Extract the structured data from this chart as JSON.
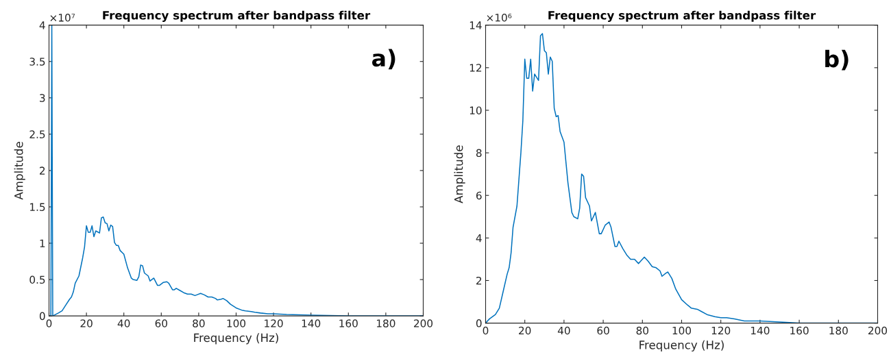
{
  "chart_data": [
    {
      "type": "line",
      "title": "Frequency spectrum after bandpass filter",
      "xlabel": "Frequency (Hz)",
      "ylabel": "Amplitude",
      "annotations": [
        "×10⁷",
        "a)"
      ],
      "grid": false,
      "legend": false,
      "marker": "none",
      "line_style": "solid",
      "xlim": [
        0,
        200
      ],
      "xticks": [
        0,
        20,
        40,
        60,
        80,
        100,
        120,
        140,
        160,
        180,
        200
      ],
      "ylim": [
        0,
        4
      ],
      "yticks": [
        0,
        0.5,
        1,
        1.5,
        2,
        2.5,
        3,
        3.5,
        4
      ],
      "series": [
        {
          "color": "#0072bd",
          "x": [
            0,
            1,
            1.5,
            2,
            5,
            7,
            9,
            11,
            12,
            13,
            14,
            16,
            18,
            19,
            20,
            21,
            22,
            23,
            24,
            25,
            27,
            28,
            29,
            30,
            31,
            32,
            33,
            34,
            35,
            36,
            37,
            38,
            40,
            42,
            44,
            45,
            47,
            48,
            49,
            50,
            51,
            53,
            54,
            56,
            58,
            59,
            61,
            63,
            64,
            66,
            67,
            68,
            70,
            72,
            74,
            76,
            78,
            79,
            81,
            83,
            85,
            87,
            89,
            90,
            92,
            93,
            95,
            97,
            100,
            103,
            105,
            108,
            110,
            113,
            117,
            120,
            127,
            140,
            160,
            200
          ],
          "values": [
            0,
            0,
            4,
            0,
            0.04,
            0.07,
            0.15,
            0.23,
            0.26,
            0.33,
            0.45,
            0.55,
            0.8,
            0.95,
            1.24,
            1.15,
            1.15,
            1.24,
            1.09,
            1.17,
            1.14,
            1.35,
            1.36,
            1.28,
            1.27,
            1.17,
            1.25,
            1.23,
            1.01,
            0.97,
            0.97,
            0.9,
            0.85,
            0.66,
            0.52,
            0.5,
            0.49,
            0.54,
            0.7,
            0.69,
            0.59,
            0.55,
            0.48,
            0.52,
            0.42,
            0.42,
            0.46,
            0.47,
            0.45,
            0.36,
            0.36,
            0.38,
            0.35,
            0.32,
            0.3,
            0.3,
            0.28,
            0.29,
            0.31,
            0.29,
            0.26,
            0.26,
            0.24,
            0.22,
            0.23,
            0.24,
            0.21,
            0.16,
            0.11,
            0.08,
            0.07,
            0.06,
            0.05,
            0.04,
            0.03,
            0.03,
            0.02,
            0.01,
            0,
            0
          ]
        }
      ]
    },
    {
      "type": "line",
      "title": "Frequency spectrum after bandpass filter",
      "xlabel": "Frequency (Hz)",
      "ylabel": "Amplitude",
      "annotations": [
        "×10⁶",
        "b)"
      ],
      "grid": false,
      "legend": false,
      "marker": "none",
      "line_style": "solid",
      "xlim": [
        0,
        200
      ],
      "xticks": [
        0,
        20,
        40,
        60,
        80,
        100,
        120,
        140,
        160,
        180,
        200
      ],
      "ylim": [
        0,
        14
      ],
      "yticks": [
        0,
        2,
        4,
        6,
        8,
        10,
        12,
        14
      ],
      "series": [
        {
          "color": "#0072bd",
          "x": [
            0,
            2,
            5,
            7,
            9,
            11,
            12,
            13,
            14,
            16,
            18,
            19,
            20,
            21,
            22,
            23,
            24,
            25,
            27,
            28,
            29,
            30,
            31,
            32,
            33,
            34,
            35,
            36,
            37,
            38,
            40,
            42,
            44,
            45,
            47,
            48,
            49,
            50,
            51,
            53,
            54,
            56,
            58,
            59,
            61,
            63,
            64,
            66,
            67,
            68,
            70,
            72,
            74,
            76,
            78,
            79,
            81,
            83,
            85,
            87,
            89,
            90,
            92,
            93,
            95,
            97,
            100,
            103,
            105,
            108,
            110,
            113,
            117,
            120,
            123,
            127,
            132,
            140,
            150,
            160,
            180,
            200
          ],
          "values": [
            0,
            0.2,
            0.4,
            0.7,
            1.5,
            2.3,
            2.6,
            3.3,
            4.5,
            5.5,
            8,
            9.5,
            12.4,
            11.5,
            11.5,
            12.4,
            10.9,
            11.7,
            11.4,
            13.5,
            13.6,
            12.8,
            12.7,
            11.7,
            12.5,
            12.3,
            10.1,
            9.7,
            9.75,
            9,
            8.5,
            6.6,
            5.2,
            5,
            4.9,
            5.4,
            7,
            6.9,
            5.9,
            5.5,
            4.8,
            5.2,
            4.2,
            4.2,
            4.6,
            4.75,
            4.5,
            3.6,
            3.6,
            3.85,
            3.5,
            3.2,
            3,
            3,
            2.8,
            2.9,
            3.1,
            2.9,
            2.65,
            2.6,
            2.45,
            2.2,
            2.35,
            2.4,
            2.1,
            1.6,
            1.1,
            0.85,
            0.7,
            0.65,
            0.55,
            0.4,
            0.3,
            0.25,
            0.25,
            0.2,
            0.1,
            0.1,
            0.05,
            0,
            0,
            0
          ]
        }
      ]
    }
  ]
}
